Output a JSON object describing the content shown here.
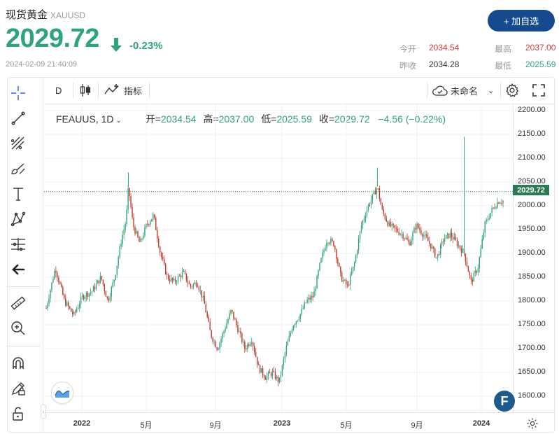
{
  "header": {
    "name": "现货黄金",
    "code": "XAUUSD",
    "price": "2029.72",
    "change": "-0.23%",
    "timestamp": "2024-02-09 21:40:09",
    "add_button": "+ 加自选"
  },
  "stats": {
    "open_label": "今开",
    "open": "2034.54",
    "high_label": "最高",
    "high": "2037.00",
    "prev_label": "昨收",
    "prev": "2034.28",
    "low_label": "最低",
    "low": "2025.59"
  },
  "toolbar": {
    "interval": "D",
    "indicators": "指标",
    "layout_name": "未命名"
  },
  "legend": {
    "symbol": "FEAUUS, 1D",
    "open_label": "开",
    "open": "2034.54",
    "high_label": "高",
    "high": "2037.00",
    "low_label": "低",
    "low": "2025.59",
    "close_label": "收",
    "close": "2029.72",
    "change": "−4.56 (−0.22%)"
  },
  "colors": {
    "up": "#2fa37a",
    "down": "#d23a3a",
    "accent": "#174a8c"
  },
  "icons": [
    "crosshair-icon",
    "trend-line-icon",
    "pitchfork-icon",
    "brush-icon",
    "text-icon",
    "pattern-icon",
    "fib-icon",
    "back-arrow-icon",
    "ruler-icon",
    "zoom-in-icon",
    "magnet-icon",
    "lock-drawing-icon",
    "unlock-icon"
  ],
  "chart_data": {
    "type": "candlestick",
    "y_ticks": [
      "2200.00",
      "2150.00",
      "2100.00",
      "2050.00",
      "2000.00",
      "1950.00",
      "1900.00",
      "1850.00",
      "1800.00",
      "1750.00",
      "1700.00",
      "1650.00",
      "1600.00"
    ],
    "x_ticks": [
      {
        "label": "2022",
        "bold": true
      },
      {
        "label": "5月",
        "bold": false
      },
      {
        "label": "9月",
        "bold": false
      },
      {
        "label": "2023",
        "bold": true
      },
      {
        "label": "5月",
        "bold": false
      },
      {
        "label": "9月",
        "bold": false
      },
      {
        "label": "2024",
        "bold": true
      }
    ],
    "last_price": "2029.72",
    "ylim": [
      1580,
      2210
    ],
    "series": [
      {
        "t": 0,
        "v": 1785
      },
      {
        "t": 0.02,
        "v": 1870
      },
      {
        "t": 0.04,
        "v": 1800
      },
      {
        "t": 0.06,
        "v": 1770
      },
      {
        "t": 0.08,
        "v": 1810
      },
      {
        "t": 0.1,
        "v": 1820
      },
      {
        "t": 0.12,
        "v": 1850
      },
      {
        "t": 0.135,
        "v": 1800
      },
      {
        "t": 0.15,
        "v": 1850
      },
      {
        "t": 0.165,
        "v": 1930
      },
      {
        "t": 0.175,
        "v": 1970
      },
      {
        "t": 0.18,
        "v": 2040
      },
      {
        "t": 0.19,
        "v": 1960
      },
      {
        "t": 0.205,
        "v": 1920
      },
      {
        "t": 0.22,
        "v": 1960
      },
      {
        "t": 0.235,
        "v": 1980
      },
      {
        "t": 0.25,
        "v": 1900
      },
      {
        "t": 0.265,
        "v": 1850
      },
      {
        "t": 0.28,
        "v": 1840
      },
      {
        "t": 0.3,
        "v": 1860
      },
      {
        "t": 0.315,
        "v": 1830
      },
      {
        "t": 0.33,
        "v": 1840
      },
      {
        "t": 0.345,
        "v": 1800
      },
      {
        "t": 0.36,
        "v": 1730
      },
      {
        "t": 0.375,
        "v": 1700
      },
      {
        "t": 0.39,
        "v": 1740
      },
      {
        "t": 0.405,
        "v": 1780
      },
      {
        "t": 0.42,
        "v": 1740
      },
      {
        "t": 0.435,
        "v": 1700
      },
      {
        "t": 0.45,
        "v": 1720
      },
      {
        "t": 0.465,
        "v": 1660
      },
      {
        "t": 0.48,
        "v": 1640
      },
      {
        "t": 0.495,
        "v": 1650
      },
      {
        "t": 0.51,
        "v": 1630
      },
      {
        "t": 0.525,
        "v": 1700
      },
      {
        "t": 0.54,
        "v": 1750
      },
      {
        "t": 0.555,
        "v": 1770
      },
      {
        "t": 0.57,
        "v": 1800
      },
      {
        "t": 0.585,
        "v": 1810
      },
      {
        "t": 0.6,
        "v": 1880
      },
      {
        "t": 0.615,
        "v": 1930
      },
      {
        "t": 0.63,
        "v": 1920
      },
      {
        "t": 0.645,
        "v": 1850
      },
      {
        "t": 0.66,
        "v": 1830
      },
      {
        "t": 0.675,
        "v": 1880
      },
      {
        "t": 0.69,
        "v": 1960
      },
      {
        "t": 0.705,
        "v": 2000
      },
      {
        "t": 0.715,
        "v": 2020
      },
      {
        "t": 0.725,
        "v": 2040
      },
      {
        "t": 0.735,
        "v": 1990
      },
      {
        "t": 0.75,
        "v": 1960
      },
      {
        "t": 0.765,
        "v": 1950
      },
      {
        "t": 0.78,
        "v": 1940
      },
      {
        "t": 0.795,
        "v": 1920
      },
      {
        "t": 0.81,
        "v": 1960
      },
      {
        "t": 0.825,
        "v": 1940
      },
      {
        "t": 0.84,
        "v": 1920
      },
      {
        "t": 0.855,
        "v": 1890
      },
      {
        "t": 0.87,
        "v": 1930
      },
      {
        "t": 0.885,
        "v": 1940
      },
      {
        "t": 0.9,
        "v": 1920
      },
      {
        "t": 0.915,
        "v": 1900
      },
      {
        "t": 0.93,
        "v": 1840
      },
      {
        "t": 0.945,
        "v": 1870
      },
      {
        "t": 0.96,
        "v": 1960
      },
      {
        "t": 0.975,
        "v": 1990
      },
      {
        "t": 0.99,
        "v": 2010
      }
    ]
  }
}
